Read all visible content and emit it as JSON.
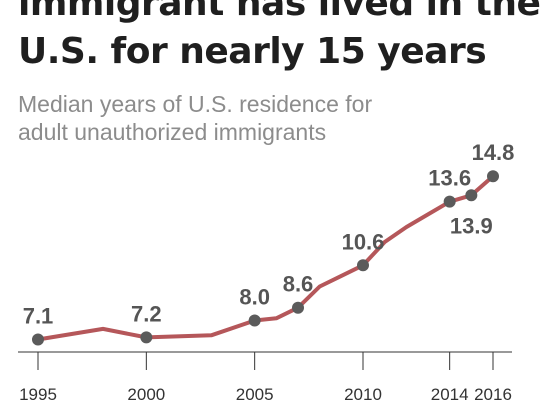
{
  "chart_data": {
    "type": "line",
    "title_lines": [
      "immigrant has lived in the",
      "U.S. for nearly 15 years"
    ],
    "subtitle_lines": [
      "Median years of U.S. residence for",
      "adult unauthorized immigrants"
    ],
    "x": [
      1995,
      1998,
      2000,
      2003,
      2005,
      2006,
      2007,
      2008,
      2009,
      2010,
      2011,
      2012,
      2013,
      2014,
      2015,
      2016
    ],
    "values": [
      7.1,
      7.6,
      7.2,
      7.3,
      8.0,
      8.1,
      8.6,
      9.6,
      10.1,
      10.6,
      11.7,
      12.4,
      13.0,
      13.6,
      13.9,
      14.8
    ],
    "xticks": [
      1995,
      2000,
      2005,
      2010,
      2014,
      2016
    ],
    "xtick_labels": [
      "1995",
      "2000",
      "2005",
      "2010",
      "2014",
      "2016"
    ],
    "labeled_points": [
      {
        "x": 1995,
        "y": 7.1,
        "label": "7.1",
        "position": "above"
      },
      {
        "x": 2000,
        "y": 7.2,
        "label": "7.2",
        "position": "above"
      },
      {
        "x": 2005,
        "y": 8.0,
        "label": "8.0",
        "position": "above"
      },
      {
        "x": 2007,
        "y": 8.6,
        "label": "8.6",
        "position": "above"
      },
      {
        "x": 2010,
        "y": 10.6,
        "label": "10.6",
        "position": "above"
      },
      {
        "x": 2014,
        "y": 13.6,
        "label": "13.6",
        "position": "above"
      },
      {
        "x": 2015,
        "y": 13.9,
        "label": "13.9",
        "position": "below"
      },
      {
        "x": 2016,
        "y": 14.8,
        "label": "14.8",
        "position": "above"
      }
    ],
    "xlim": [
      1995,
      2016
    ],
    "ylim": [
      5.9,
      15.8
    ],
    "grid": false,
    "line_color": "#b5575a",
    "marker_color": "#5b5b5b",
    "label_color": "#555555",
    "axis_color": "#333333"
  }
}
